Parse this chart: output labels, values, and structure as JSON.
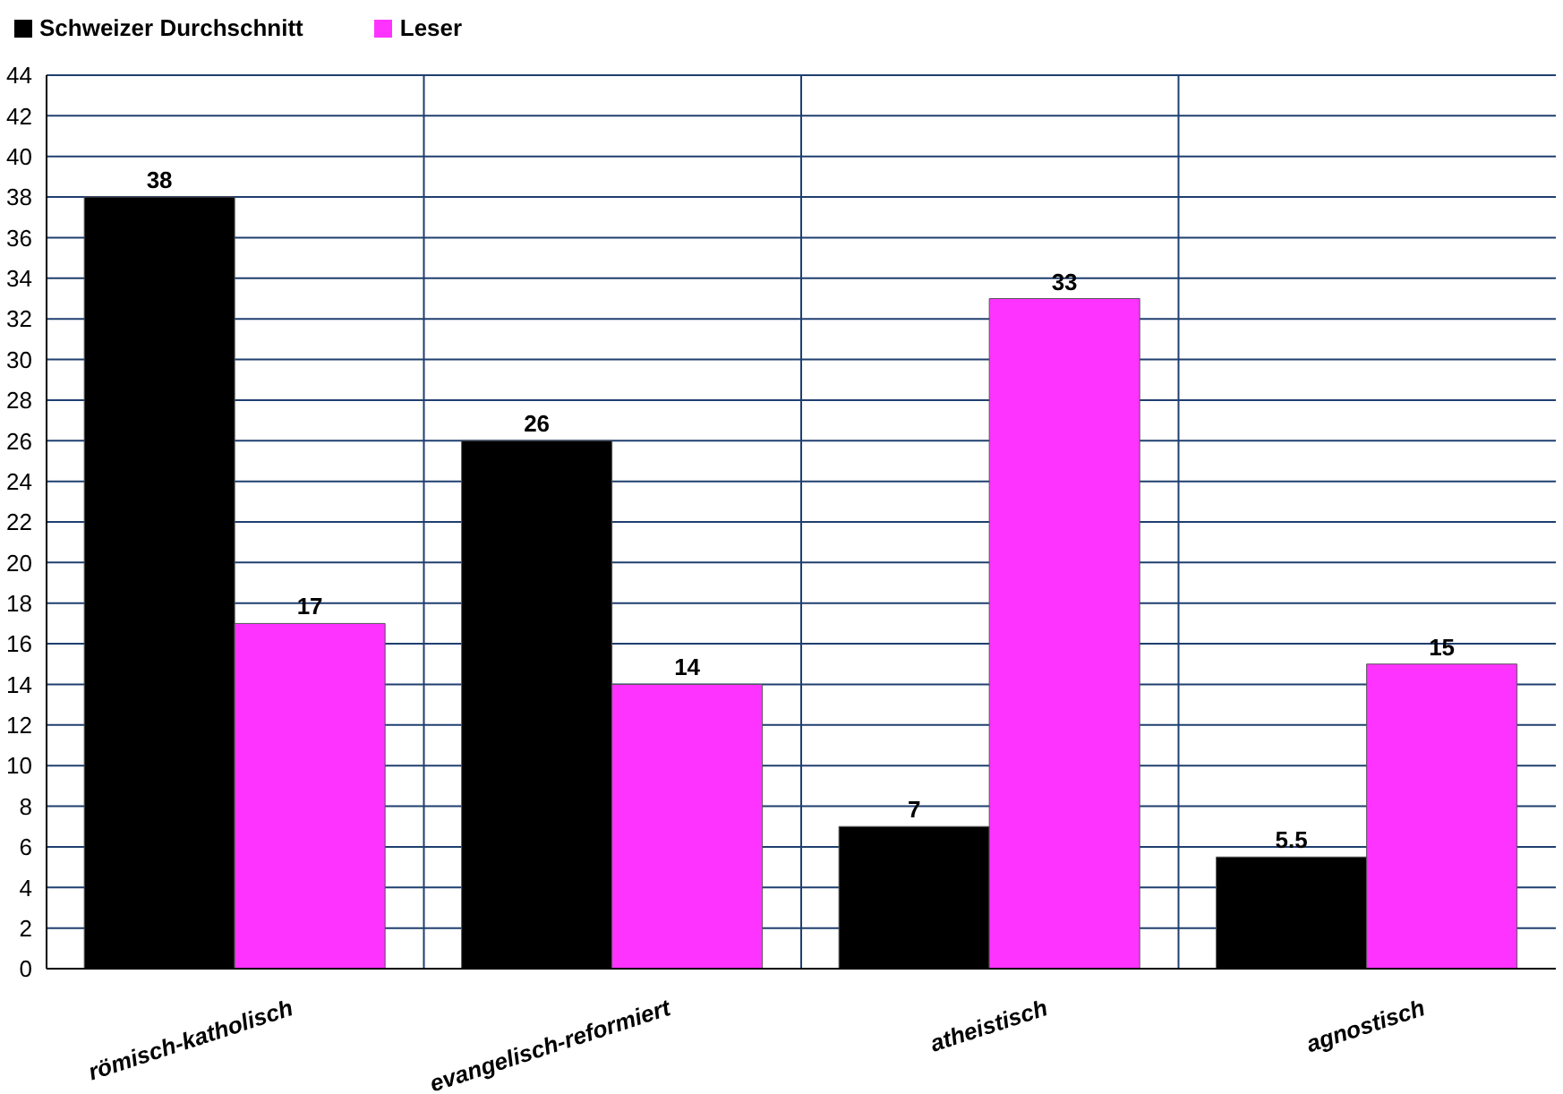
{
  "chart_data": {
    "type": "bar",
    "categories": [
      "römisch-katholisch",
      "evangelisch-reformiert",
      "atheistisch",
      "agnostisch"
    ],
    "series": [
      {
        "name": "Schweizer Durchschnitt",
        "color": "#000000",
        "values": [
          38,
          26,
          7,
          5.5
        ]
      },
      {
        "name": "Leser",
        "color": "#ff33ff",
        "values": [
          17,
          14,
          33,
          15
        ]
      }
    ],
    "ylim": [
      0,
      44
    ],
    "yticks": [
      0,
      2,
      4,
      6,
      8,
      10,
      12,
      14,
      16,
      18,
      20,
      22,
      24,
      26,
      28,
      30,
      32,
      34,
      36,
      38,
      40,
      42,
      44
    ],
    "grid": true,
    "legend": "top left",
    "data_labels": true
  }
}
